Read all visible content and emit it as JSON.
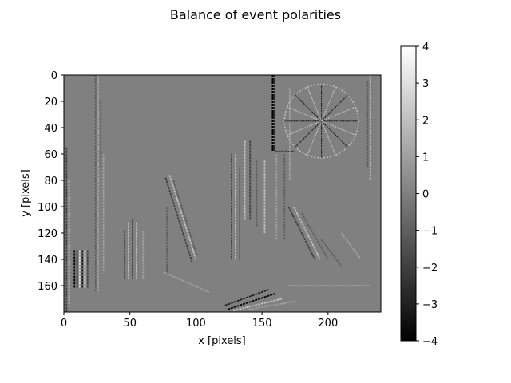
{
  "chart_data": {
    "type": "heatmap",
    "title": "Balance of event polarities",
    "xlabel": "x [pixels]",
    "ylabel": "y [pixels]",
    "xlim": [
      0,
      240
    ],
    "ylim": [
      180,
      0
    ],
    "x_ticks": [
      0,
      50,
      100,
      150,
      200
    ],
    "y_ticks": [
      0,
      20,
      40,
      60,
      80,
      100,
      120,
      140,
      160
    ],
    "colormap": "gray",
    "color_range": [
      -4,
      4
    ],
    "colorbar_ticks": [
      4,
      3,
      2,
      1,
      0,
      -1,
      -2,
      -3,
      -4
    ],
    "colorbar_tick_labels": [
      "4",
      "3",
      "2",
      "1",
      "0",
      "−1",
      "−2",
      "−3",
      "−4"
    ],
    "background_value": 0,
    "features": [
      {
        "kind": "vline",
        "x": 2,
        "y": [
          55,
          180
        ],
        "v": -2
      },
      {
        "kind": "vline",
        "x": 4,
        "y": [
          80,
          175
        ],
        "v": 2
      },
      {
        "kind": "vline",
        "x": 24,
        "y": [
          0,
          165
        ],
        "v": -1
      },
      {
        "kind": "vline",
        "x": 26,
        "y": [
          0,
          165
        ],
        "v": 1
      },
      {
        "kind": "vline",
        "x": 30,
        "y": [
          60,
          150
        ],
        "v": 1
      },
      {
        "kind": "vline",
        "x": 28,
        "y": [
          20,
          70
        ],
        "v": -1
      },
      {
        "kind": "vline",
        "x": 8,
        "y": [
          133,
          162
        ],
        "v": -4
      },
      {
        "kind": "vline",
        "x": 10,
        "y": [
          133,
          162
        ],
        "v": -3
      },
      {
        "kind": "vline",
        "x": 12,
        "y": [
          133,
          162
        ],
        "v": 3
      },
      {
        "kind": "vline",
        "x": 14,
        "y": [
          133,
          162
        ],
        "v": -3
      },
      {
        "kind": "vline",
        "x": 16,
        "y": [
          133,
          162
        ],
        "v": 4
      },
      {
        "kind": "vline",
        "x": 18,
        "y": [
          133,
          162
        ],
        "v": -2
      },
      {
        "kind": "vline",
        "x": 46,
        "y": [
          118,
          155
        ],
        "v": -2
      },
      {
        "kind": "vline",
        "x": 49,
        "y": [
          112,
          155
        ],
        "v": 2
      },
      {
        "kind": "vline",
        "x": 52,
        "y": [
          110,
          155
        ],
        "v": -2
      },
      {
        "kind": "vline",
        "x": 55,
        "y": [
          112,
          155
        ],
        "v": 2
      },
      {
        "kind": "vline",
        "x": 60,
        "y": [
          118,
          155
        ],
        "v": 1
      },
      {
        "kind": "seg",
        "x1": 77,
        "y1": 78,
        "x2": 97,
        "y2": 142,
        "v": -2
      },
      {
        "kind": "seg",
        "x1": 80,
        "y1": 76,
        "x2": 100,
        "y2": 140,
        "v": 2
      },
      {
        "kind": "seg",
        "x1": 83,
        "y1": 80,
        "x2": 101,
        "y2": 138,
        "v": -1
      },
      {
        "kind": "vline",
        "x": 78,
        "y": [
          100,
          150
        ],
        "v": -1
      },
      {
        "kind": "seg",
        "x1": 76,
        "y1": 150,
        "x2": 110,
        "y2": 165,
        "v": 1
      },
      {
        "kind": "vline",
        "x": 127,
        "y": [
          60,
          140
        ],
        "v": -2
      },
      {
        "kind": "vline",
        "x": 130,
        "y": [
          60,
          140
        ],
        "v": 2
      },
      {
        "kind": "vline",
        "x": 133,
        "y": [
          70,
          140
        ],
        "v": -1
      },
      {
        "kind": "vline",
        "x": 137,
        "y": [
          50,
          110
        ],
        "v": 2
      },
      {
        "kind": "vline",
        "x": 141,
        "y": [
          50,
          110
        ],
        "v": -2
      },
      {
        "kind": "vline",
        "x": 146,
        "y": [
          65,
          115
        ],
        "v": -1
      },
      {
        "kind": "vline",
        "x": 152,
        "y": [
          65,
          120
        ],
        "v": 2
      },
      {
        "kind": "vline",
        "x": 158,
        "y": [
          0,
          58
        ],
        "v": -4
      },
      {
        "kind": "vline",
        "x": 159,
        "y": [
          0,
          58
        ],
        "v": -3
      },
      {
        "kind": "vline",
        "x": 161,
        "y": [
          60,
          125
        ],
        "v": 1
      },
      {
        "kind": "vline",
        "x": 167,
        "y": [
          60,
          125
        ],
        "v": -1
      },
      {
        "kind": "hline",
        "y": 58,
        "x": [
          160,
          175
        ],
        "v": -2
      },
      {
        "kind": "vline",
        "x": 171,
        "y": [
          10,
          80
        ],
        "v": 1
      },
      {
        "kind": "vline",
        "x": 232,
        "y": [
          0,
          80
        ],
        "v": 2
      },
      {
        "kind": "vline",
        "x": 230,
        "y": [
          5,
          70
        ],
        "v": -1
      },
      {
        "kind": "seg",
        "x1": 170,
        "y1": 100,
        "x2": 190,
        "y2": 140,
        "v": -2
      },
      {
        "kind": "seg",
        "x1": 174,
        "y1": 100,
        "x2": 194,
        "y2": 140,
        "v": 2
      },
      {
        "kind": "seg",
        "x1": 180,
        "y1": 105,
        "x2": 200,
        "y2": 140,
        "v": -1
      },
      {
        "kind": "seg",
        "x1": 210,
        "y1": 120,
        "x2": 225,
        "y2": 140,
        "v": 1
      },
      {
        "kind": "seg",
        "x1": 195,
        "y1": 125,
        "x2": 210,
        "y2": 145,
        "v": -1
      },
      {
        "kind": "hline",
        "y": 160,
        "x": [
          170,
          232
        ],
        "v": 1
      },
      {
        "kind": "seg",
        "x1": 122,
        "y1": 175,
        "x2": 155,
        "y2": 163,
        "v": -3
      },
      {
        "kind": "seg",
        "x1": 124,
        "y1": 178,
        "x2": 160,
        "y2": 166,
        "v": -4
      },
      {
        "kind": "seg",
        "x1": 128,
        "y1": 179,
        "x2": 165,
        "y2": 170,
        "v": 2
      },
      {
        "kind": "seg",
        "x1": 140,
        "y1": 178,
        "x2": 175,
        "y2": 172,
        "v": 1
      }
    ],
    "circle_feature": {
      "cx": 195,
      "cy": 35,
      "r": 28,
      "spokes": 16,
      "v_ring": 2,
      "v_spoke": -3
    }
  }
}
